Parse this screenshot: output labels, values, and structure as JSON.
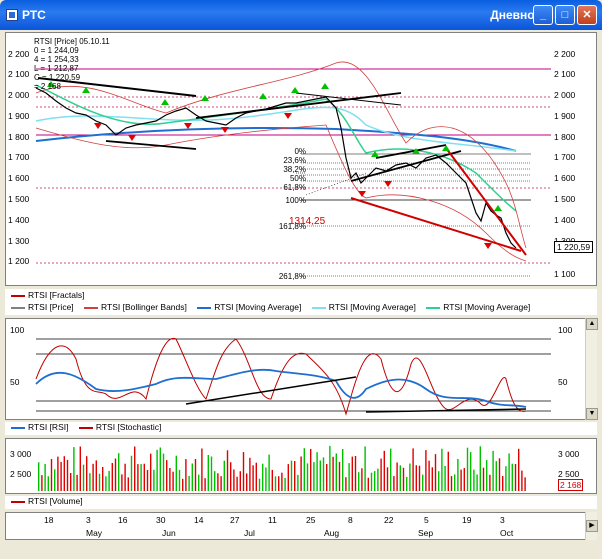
{
  "window": {
    "title": "РТС",
    "period": "Дневной",
    "minimize": "_",
    "maximize": "□",
    "close": "✕"
  },
  "price_panel": {
    "info_lines": [
      "RTSI [Price] 05.10.11",
      "0 = 1 244,09",
      "4 = 1 254,33",
      "L = 1 212,87",
      "C = 1 220,59",
      "= 2 168"
    ],
    "y_ticks": [
      "2 200",
      "2 100",
      "2 000",
      "1 900",
      "1 800",
      "1 700",
      "1 600",
      "1 500",
      "1 400",
      "1 300",
      "1 200",
      "1 100"
    ],
    "current_price": "1 220,59",
    "fib_labels": [
      "0%",
      "23,6%",
      "38,2%",
      "50%",
      "61,8%",
      "100%",
      "161,8%",
      "261,8%"
    ],
    "fib_value": "1314,25"
  },
  "legend_price": [
    {
      "label": "RTSI [Fractals]",
      "color": "#c00000"
    },
    {
      "label": "RTSI [Price]",
      "color": "#808080"
    },
    {
      "label": "RTSI [Bollinger Bands]",
      "color": "#d04040"
    },
    {
      "label": "RTSI [Moving Average]",
      "color": "#1f6fd0"
    },
    {
      "label": "RTSI [Moving Average]",
      "color": "#80e0f0"
    },
    {
      "label": "RTSI [Moving Average]",
      "color": "#30d090"
    }
  ],
  "osc_panel": {
    "y_ticks": [
      "100",
      "50"
    ],
    "legend": [
      {
        "label": "RTSI [RSI]",
        "color": "#1f6fd0"
      },
      {
        "label": "RTSI [Stochastic]",
        "color": "#c00000"
      }
    ]
  },
  "volume_panel": {
    "y_ticks": [
      "3 000",
      "2 500"
    ],
    "current": "2 168",
    "legend": [
      {
        "label": "RTSI [Volume]",
        "color": "#c00000"
      }
    ]
  },
  "dates": {
    "days": [
      "18",
      "3",
      "16",
      "30",
      "14",
      "27",
      "11",
      "25",
      "8",
      "22",
      "5",
      "19",
      "3"
    ],
    "months": [
      "May",
      "Jun",
      "Jul",
      "Aug",
      "Sep",
      "Oct"
    ]
  },
  "colors": {
    "accent": "#0a5ee0",
    "up": "#00c000",
    "down": "#e00000"
  }
}
